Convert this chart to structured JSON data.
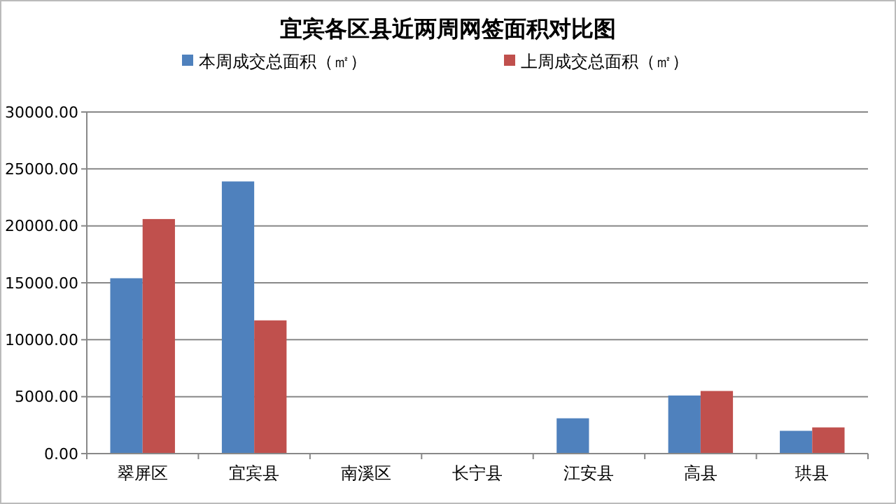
{
  "chart_data": {
    "type": "bar",
    "title": "宜宾各区县近两周网签面积对比图",
    "categories": [
      "翠屏区",
      "宜宾县",
      "南溪区",
      "长宁县",
      "江安县",
      "高县",
      "珙县"
    ],
    "series": [
      {
        "name": "本周成交总面积（㎡）",
        "color": "#4f81bd",
        "values": [
          15400,
          23900,
          0,
          0,
          3100,
          5100,
          2000
        ]
      },
      {
        "name": "上周成交总面积（㎡）",
        "color": "#c0504d",
        "values": [
          20600,
          11700,
          0,
          0,
          0,
          5500,
          2300
        ]
      }
    ],
    "ylim": [
      0,
      30000
    ],
    "yticks": [
      {
        "value": 0,
        "label": "0.00"
      },
      {
        "value": 5000,
        "label": "5000.00"
      },
      {
        "value": 10000,
        "label": "10000.00"
      },
      {
        "value": 15000,
        "label": "15000.00"
      },
      {
        "value": 20000,
        "label": "20000.00"
      },
      {
        "value": 25000,
        "label": "25000.00"
      },
      {
        "value": 30000,
        "label": "30000.00"
      }
    ],
    "grid": "y",
    "legend": "top"
  }
}
